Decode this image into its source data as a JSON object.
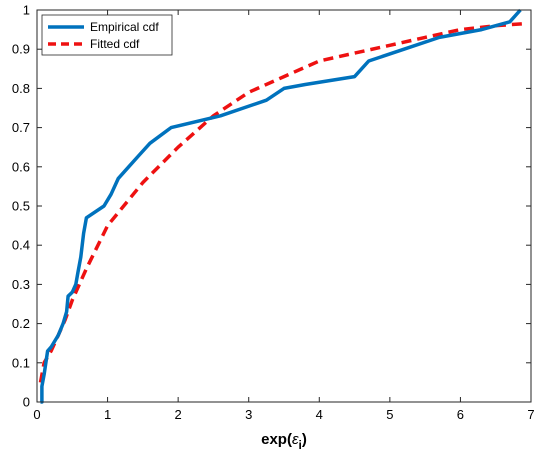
{
  "chart_data": {
    "type": "line",
    "title": "",
    "xlabel": "exp(ε_i)",
    "xlabel_parts": {
      "base": "exp(",
      "symbol": "ε",
      "subscript": "i",
      "close": ")"
    },
    "ylabel": "",
    "xlim": [
      0,
      7
    ],
    "ylim": [
      0,
      1
    ],
    "xticks": [
      "0",
      "1",
      "2",
      "3",
      "4",
      "5",
      "6",
      "7"
    ],
    "yticks": [
      "0",
      "0.1",
      "0.2",
      "0.3",
      "0.4",
      "0.5",
      "0.6",
      "0.7",
      "0.8",
      "0.9",
      "1"
    ],
    "grid": false,
    "box": true,
    "legend_position": "top-left",
    "series": [
      {
        "name": "Empirical cdf",
        "color": "#0072BD",
        "line_style": "solid",
        "x": [
          0.05,
          0.07,
          0.07,
          0.1,
          0.15,
          0.2,
          0.3,
          0.37,
          0.42,
          0.44,
          0.5,
          0.55,
          0.58,
          0.62,
          0.64,
          0.66,
          0.7,
          0.95,
          1.05,
          1.15,
          1.3,
          1.45,
          1.6,
          1.9,
          2.6,
          3.25,
          3.5,
          3.8,
          4.5,
          4.7,
          5.2,
          5.7,
          6.3,
          6.7,
          6.85
        ],
        "y": [
          0.0,
          0.0,
          0.04,
          0.07,
          0.13,
          0.14,
          0.17,
          0.2,
          0.23,
          0.27,
          0.28,
          0.3,
          0.33,
          0.37,
          0.4,
          0.43,
          0.47,
          0.5,
          0.53,
          0.57,
          0.6,
          0.63,
          0.66,
          0.7,
          0.73,
          0.77,
          0.8,
          0.81,
          0.83,
          0.87,
          0.9,
          0.93,
          0.95,
          0.97,
          1.0
        ]
      },
      {
        "name": "Fitted cdf",
        "color": "#EE1111",
        "line_style": "dashed",
        "x": [
          0.05,
          0.1,
          0.2,
          0.3,
          0.4,
          0.5,
          0.7,
          1.0,
          1.5,
          2.0,
          2.5,
          3.0,
          3.5,
          4.0,
          4.5,
          5.0,
          5.5,
          6.0,
          6.5,
          6.9
        ],
        "y": [
          0.05,
          0.1,
          0.13,
          0.17,
          0.21,
          0.26,
          0.34,
          0.45,
          0.56,
          0.65,
          0.73,
          0.79,
          0.83,
          0.87,
          0.89,
          0.91,
          0.93,
          0.95,
          0.96,
          0.965
        ]
      }
    ]
  }
}
